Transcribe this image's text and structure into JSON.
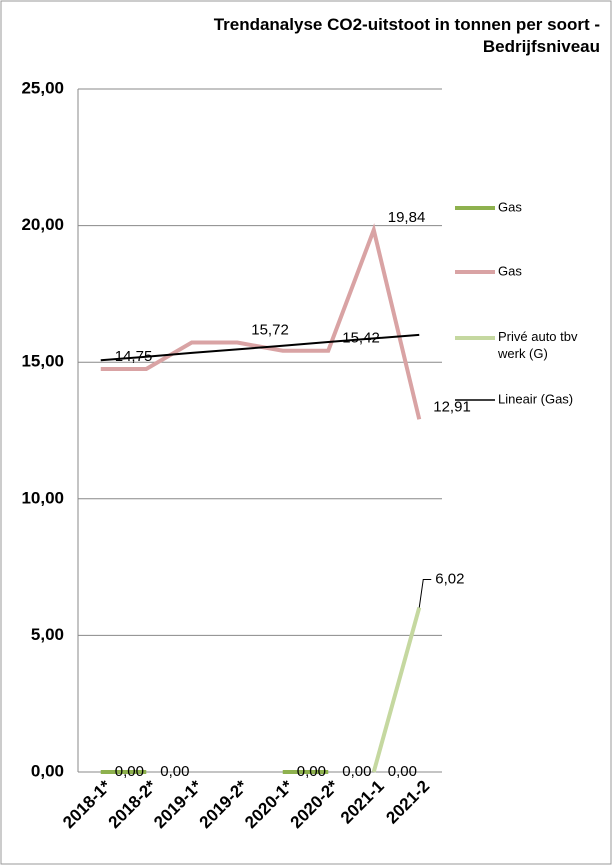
{
  "chart_data": {
    "type": "line",
    "title": "Trendanalyse CO2-uitstoot in tonnen per soort - Bedrijfsniveau",
    "categories": [
      "2018-1*",
      "2018-2*",
      "2019-1*",
      "2019-2*",
      "2020-1*",
      "2020-2*",
      "2021-1",
      "2021-2"
    ],
    "series": [
      {
        "name": "Gas",
        "color": "#8eb14e",
        "values": [
          0,
          0,
          null,
          null,
          0,
          0,
          null,
          null
        ],
        "value_labels": [
          "0,00",
          "0,00",
          null,
          null,
          "0,00",
          "0,00",
          null,
          null
        ]
      },
      {
        "name": "Gas",
        "color": "#d9a3a4",
        "values": [
          14.75,
          14.75,
          15.72,
          15.72,
          15.42,
          15.42,
          19.84,
          12.91
        ],
        "value_labels": [
          "14,75",
          null,
          null,
          "15,72",
          null,
          "15,42",
          "19,84",
          "12,91"
        ]
      },
      {
        "name": "Privé auto tbv werk (G)",
        "color": "#c5d8a0",
        "values": [
          null,
          null,
          null,
          null,
          null,
          null,
          0,
          6.02
        ],
        "value_labels": [
          null,
          null,
          null,
          null,
          null,
          null,
          "0,00",
          "6,02"
        ]
      },
      {
        "name": "Lineair (Gas)",
        "color": "#000000",
        "values": [
          15.07,
          15.2,
          15.34,
          15.47,
          15.6,
          15.74,
          15.87,
          16.0
        ]
      }
    ],
    "ylim": [
      0,
      25
    ],
    "yticks": [
      {
        "value": 0,
        "label": "0,00"
      },
      {
        "value": 5,
        "label": "5,00"
      },
      {
        "value": 10,
        "label": "10,00"
      },
      {
        "value": 15,
        "label": "15,00"
      },
      {
        "value": 20,
        "label": "20,00"
      },
      {
        "value": 25,
        "label": "25,00"
      }
    ],
    "grid": true,
    "legend": "right"
  }
}
